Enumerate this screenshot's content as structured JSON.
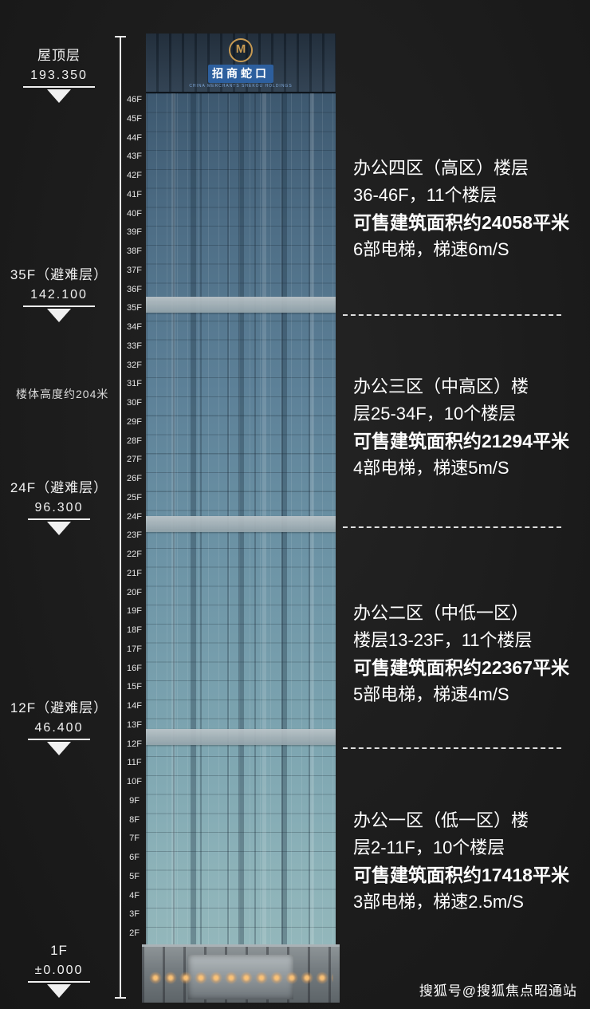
{
  "colors": {
    "background": "#1e1e1e",
    "text": "#ffffff",
    "facade_top": "#3d586f",
    "facade_bottom": "#93b7bb",
    "refuge_band": "#a9b6bb",
    "logo_gold": "#c79a52",
    "logo_blue": "#2d5f9e"
  },
  "logo": {
    "emblem": "M",
    "name": "招商蛇口",
    "subtext": "CHINA MERCHANTS SHEKOU HOLDINGS"
  },
  "left_markers": [
    {
      "label": "屋顶层",
      "value": "193.350"
    },
    {
      "label": "35F（避难层）",
      "value": "142.100"
    },
    {
      "label": "24F（避难层）",
      "value": "96.300"
    },
    {
      "label": "12F（避难层）",
      "value": "46.400"
    },
    {
      "label": "1F",
      "value": "±0.000"
    }
  ],
  "height_note": "楼体高度约204米",
  "floors": [
    "46F",
    "45F",
    "44F",
    "43F",
    "42F",
    "41F",
    "40F",
    "39F",
    "38F",
    "37F",
    "36F",
    "35F",
    "34F",
    "33F",
    "32F",
    "31F",
    "30F",
    "29F",
    "28F",
    "27F",
    "26F",
    "25F",
    "24F",
    "23F",
    "22F",
    "21F",
    "20F",
    "19F",
    "18F",
    "17F",
    "16F",
    "15F",
    "14F",
    "13F",
    "12F",
    "11F",
    "10F",
    "9F",
    "8F",
    "7F",
    "6F",
    "5F",
    "4F",
    "3F",
    "2F"
  ],
  "zones": [
    {
      "line1": "办公四区（高区）楼层",
      "line2": "36-46F，11个楼层",
      "area": "可售建筑面积约24058平米",
      "elevators": "6部电梯，梯速6m/S"
    },
    {
      "line1": "办公三区（中高区）楼",
      "line2": "层25-34F，10个楼层",
      "area": "可售建筑面积约21294平米",
      "elevators": "4部电梯，梯速5m/S"
    },
    {
      "line1": "办公二区（中低一区）",
      "line2": "楼层13-23F，11个楼层",
      "area": "可售建筑面积约22367平米",
      "elevators": "5部电梯，梯速4m/S"
    },
    {
      "line1": "办公一区（低一区）楼",
      "line2": "层2-11F，10个楼层",
      "area": "可售建筑面积约17418平米",
      "elevators": "3部电梯，梯速2.5m/S"
    }
  ],
  "watermark": "搜狐号@搜狐焦点昭通站"
}
